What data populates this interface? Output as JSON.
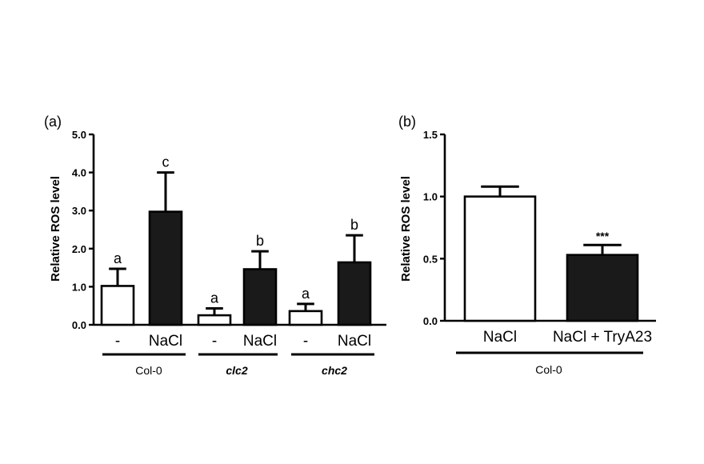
{
  "chart_data": [
    {
      "panel": "(a)",
      "type": "bar",
      "ylabel": "Relative ROS level",
      "ylim": [
        0,
        5.0
      ],
      "yticks": [
        "0.0",
        "1.0",
        "2.0",
        "3.0",
        "4.0",
        "5.0"
      ],
      "grid": false,
      "groups": [
        {
          "name": "Col-0",
          "italic": false
        },
        {
          "name": "clc2",
          "italic": true
        },
        {
          "name": "chc2",
          "italic": true
        }
      ],
      "bars": [
        {
          "group": 0,
          "label": "-",
          "value": 1.02,
          "error": 0.45,
          "fill": "white",
          "annotation": "a"
        },
        {
          "group": 0,
          "label": "NaCl",
          "value": 2.97,
          "error": 1.03,
          "fill": "black",
          "annotation": "c"
        },
        {
          "group": 1,
          "label": "-",
          "value": 0.25,
          "error": 0.18,
          "fill": "white",
          "annotation": "a"
        },
        {
          "group": 1,
          "label": "NaCl",
          "value": 1.46,
          "error": 0.47,
          "fill": "black",
          "annotation": "b"
        },
        {
          "group": 2,
          "label": "-",
          "value": 0.36,
          "error": 0.19,
          "fill": "white",
          "annotation": "a"
        },
        {
          "group": 2,
          "label": "NaCl",
          "value": 1.64,
          "error": 0.71,
          "fill": "black",
          "annotation": "b"
        }
      ]
    },
    {
      "panel": "(b)",
      "type": "bar",
      "ylabel": "Relative ROS level",
      "ylim": [
        0,
        1.5
      ],
      "yticks": [
        "0.0",
        "0.5",
        "1.0",
        "1.5"
      ],
      "grid": false,
      "groups": [
        {
          "name": "Col-0",
          "italic": false
        }
      ],
      "bars": [
        {
          "group": 0,
          "label": "NaCl",
          "value": 1.0,
          "error": 0.08,
          "fill": "white",
          "annotation": ""
        },
        {
          "group": 0,
          "label": "NaCl + TryA23",
          "value": 0.53,
          "error": 0.08,
          "fill": "black",
          "annotation": "***"
        }
      ]
    }
  ],
  "colors": {
    "axis": "#000000",
    "bar_dark": "#1a1a1a",
    "bar_light": "#ffffff"
  }
}
